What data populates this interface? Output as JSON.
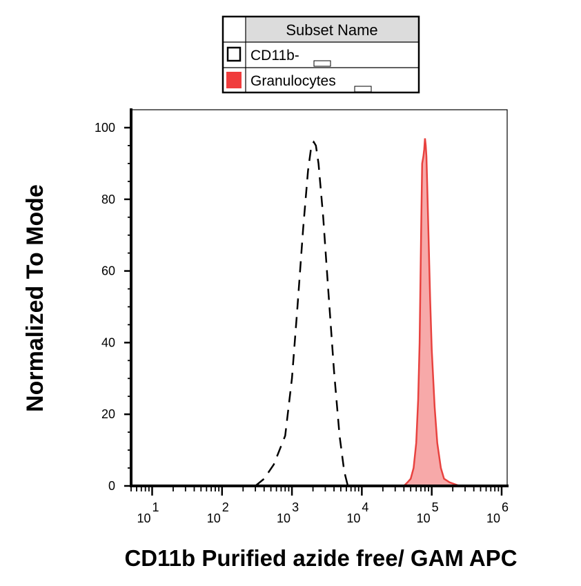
{
  "chart_data": {
    "type": "area",
    "title": "",
    "xlabel": "CD11b Purified azide free/ GAM APC",
    "ylabel": "Normalized To Mode",
    "x_scale": "log",
    "xlim": [
      5,
      1200000
    ],
    "ylim": [
      0,
      105
    ],
    "x_ticks": [
      {
        "base": "10",
        "exp": "1",
        "value": 10
      },
      {
        "base": "10",
        "exp": "2",
        "value": 100
      },
      {
        "base": "10",
        "exp": "3",
        "value": 1000
      },
      {
        "base": "10",
        "exp": "4",
        "value": 10000
      },
      {
        "base": "10",
        "exp": "5",
        "value": 100000
      },
      {
        "base": "10",
        "exp": "6",
        "value": 1000000
      }
    ],
    "y_ticks": [
      0,
      20,
      40,
      60,
      80,
      100
    ],
    "grid": false,
    "legend": {
      "header": "Subset Name",
      "position": "top-center",
      "entries": [
        "CD11b-",
        "Granulocytes"
      ]
    },
    "series": [
      {
        "name": "CD11b-",
        "style": "dashed-outline",
        "color": "#000000",
        "points": [
          [
            300,
            0
          ],
          [
            400,
            2
          ],
          [
            550,
            6
          ],
          [
            800,
            14
          ],
          [
            1000,
            30
          ],
          [
            1200,
            50
          ],
          [
            1450,
            72
          ],
          [
            1700,
            88
          ],
          [
            1900,
            95
          ],
          [
            2050,
            96
          ],
          [
            2200,
            95
          ],
          [
            2400,
            90
          ],
          [
            2800,
            75
          ],
          [
            3300,
            55
          ],
          [
            4000,
            32
          ],
          [
            4800,
            14
          ],
          [
            5600,
            4
          ],
          [
            6300,
            0
          ]
        ]
      },
      {
        "name": "Granulocytes",
        "style": "filled",
        "color": "#e8423f",
        "fill": "#f7a9a9",
        "points": [
          [
            6,
            0
          ],
          [
            40000,
            0
          ],
          [
            45000,
            1
          ],
          [
            50000,
            2
          ],
          [
            55000,
            5
          ],
          [
            60000,
            12
          ],
          [
            64000,
            24
          ],
          [
            67000,
            40
          ],
          [
            69000,
            58
          ],
          [
            71000,
            75
          ],
          [
            73000,
            90
          ],
          [
            76000,
            92
          ],
          [
            78000,
            94
          ],
          [
            80000,
            97
          ],
          [
            82000,
            95
          ],
          [
            84000,
            92
          ],
          [
            86000,
            85
          ],
          [
            90000,
            70
          ],
          [
            95000,
            52
          ],
          [
            100000,
            38
          ],
          [
            110000,
            22
          ],
          [
            120000,
            12
          ],
          [
            135000,
            5
          ],
          [
            150000,
            2
          ],
          [
            180000,
            1
          ],
          [
            250000,
            0
          ],
          [
            1000000,
            0
          ]
        ]
      }
    ]
  }
}
